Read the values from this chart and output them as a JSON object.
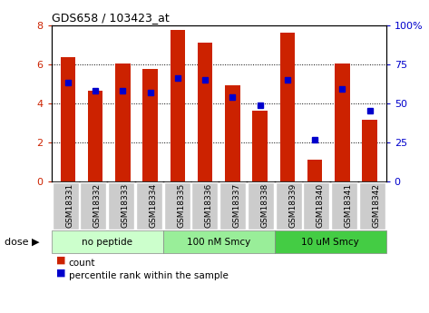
{
  "title": "GDS658 / 103423_at",
  "samples": [
    "GSM18331",
    "GSM18332",
    "GSM18333",
    "GSM18334",
    "GSM18335",
    "GSM18336",
    "GSM18337",
    "GSM18338",
    "GSM18339",
    "GSM18340",
    "GSM18341",
    "GSM18342"
  ],
  "count_values": [
    6.35,
    4.65,
    6.05,
    5.75,
    7.75,
    7.1,
    4.9,
    3.6,
    7.6,
    1.1,
    6.05,
    3.15
  ],
  "percentile_values": [
    63,
    58,
    58,
    57,
    66,
    65,
    54,
    49,
    65,
    27,
    59,
    45
  ],
  "bar_color": "#cc2200",
  "percentile_color": "#0000cc",
  "groups": [
    {
      "label": "no peptide",
      "start": 0,
      "end": 3,
      "color": "#ccffcc"
    },
    {
      "label": "100 nM Smcy",
      "start": 4,
      "end": 7,
      "color": "#99ee99"
    },
    {
      "label": "10 uM Smcy",
      "start": 8,
      "end": 11,
      "color": "#44cc44"
    }
  ],
  "ylim_left": [
    0,
    8
  ],
  "ylim_right": [
    0,
    100
  ],
  "yticks_left": [
    0,
    2,
    4,
    6,
    8
  ],
  "yticks_right": [
    0,
    25,
    50,
    75,
    100
  ],
  "ytick_labels_right": [
    "0",
    "25",
    "50",
    "75",
    "100%"
  ],
  "grid_color": "#000000",
  "bg_color": "#ffffff",
  "legend_count_label": "count",
  "legend_percentile_label": "percentile rank within the sample",
  "dose_label": "dose",
  "left_tick_color": "#cc2200",
  "right_tick_color": "#0000cc",
  "bar_width": 0.55,
  "xtick_bg_color": "#cccccc",
  "xtick_bg_edge_color": "#ffffff"
}
